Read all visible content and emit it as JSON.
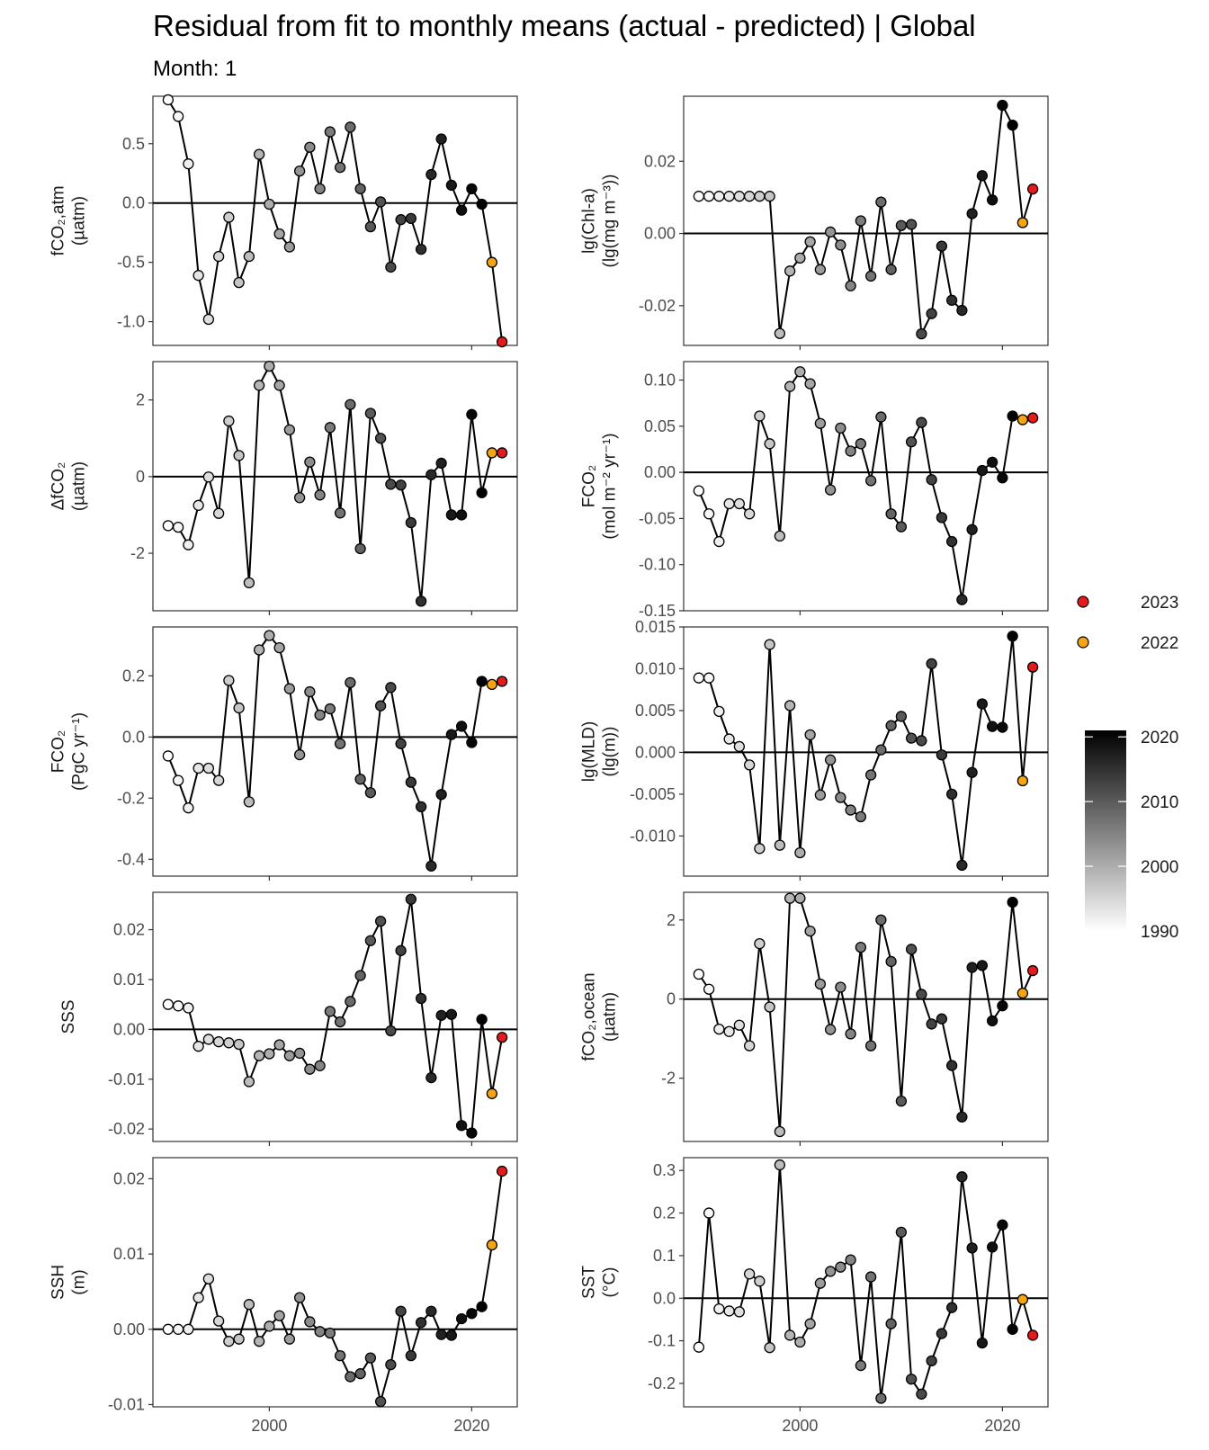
{
  "chart_data": {
    "title": "Residual from fit to monthly means (actual - predicted) | Global",
    "subtitle": "Month: 1",
    "type": "line",
    "x_ticks": [
      "2000",
      "2020"
    ],
    "legend": {
      "highlight": [
        {
          "label": "2023",
          "color": "#e41a1c"
        },
        {
          "label": "2022",
          "color": "#f5a511"
        }
      ],
      "colorbar": {
        "ticks": [
          "2020",
          "2010",
          "2000",
          "1990"
        ],
        "min": 1990,
        "max": 2021
      }
    },
    "panels": [
      {
        "label_lines": [
          "fCO₂,atm",
          "(µatm)"
        ],
        "ylim": [
          -1.2,
          0.9
        ],
        "yticks": [
          -1.0,
          -0.5,
          0.0,
          0.5
        ],
        "tick_labels": [
          "-1.0",
          "-0.5",
          "0.0",
          "0.5"
        ],
        "years": [
          1990,
          1991,
          1992,
          1993,
          1994,
          1995,
          1996,
          1997,
          1998,
          1999,
          2000,
          2001,
          2002,
          2003,
          2004,
          2005,
          2006,
          2007,
          2008,
          2009,
          2010,
          2011,
          2012,
          2013,
          2014,
          2015,
          2016,
          2017,
          2018,
          2019,
          2020,
          2021,
          2022,
          2023
        ],
        "values": [
          0.87,
          0.73,
          0.33,
          -0.61,
          -0.98,
          -0.45,
          -0.12,
          -0.67,
          -0.45,
          0.41,
          -0.01,
          -0.26,
          -0.37,
          0.27,
          0.47,
          0.12,
          0.6,
          0.3,
          0.64,
          0.12,
          -0.2,
          0.01,
          -0.54,
          -0.14,
          -0.13,
          -0.39,
          0.24,
          0.54,
          0.15,
          -0.06,
          0.12,
          -0.01,
          -0.5,
          -1.17
        ]
      },
      {
        "label_lines": [
          "lg(Chl-a)",
          "(lg(mg m⁻³))"
        ],
        "ylim": [
          -0.031,
          0.038
        ],
        "yticks": [
          -0.02,
          0.0,
          0.02
        ],
        "tick_labels": [
          "-0.02",
          "0.00",
          "0.02"
        ],
        "years": [
          1990,
          1991,
          1992,
          1993,
          1994,
          1995,
          1996,
          1997,
          1998,
          1999,
          2000,
          2001,
          2002,
          2003,
          2004,
          2005,
          2006,
          2007,
          2008,
          2009,
          2010,
          2011,
          2012,
          2013,
          2014,
          2015,
          2016,
          2017,
          2018,
          2019,
          2020,
          2021,
          2022,
          2023
        ],
        "values": [
          0.0103,
          0.0103,
          0.0103,
          0.0103,
          0.0103,
          0.0103,
          0.0103,
          0.0103,
          -0.0277,
          -0.0104,
          -0.0068,
          -0.0023,
          -0.01,
          0.0004,
          -0.0032,
          -0.0145,
          0.0035,
          -0.0118,
          0.0087,
          -0.01,
          0.0022,
          0.0025,
          -0.0278,
          -0.0222,
          -0.0035,
          -0.0185,
          -0.0213,
          0.0055,
          0.016,
          0.0093,
          0.0355,
          0.03,
          0.003,
          0.0123
        ]
      },
      {
        "label_lines": [
          "ΔfCO₂",
          "(µatm)"
        ],
        "ylim": [
          -3.5,
          3.0
        ],
        "yticks": [
          -2,
          0,
          2
        ],
        "tick_labels": [
          "-2",
          "0",
          "2"
        ],
        "years": [
          1990,
          1991,
          1992,
          1993,
          1994,
          1995,
          1996,
          1997,
          1998,
          1999,
          2000,
          2001,
          2002,
          2003,
          2004,
          2005,
          2006,
          2007,
          2008,
          2009,
          2010,
          2011,
          2012,
          2013,
          2014,
          2015,
          2016,
          2017,
          2018,
          2019,
          2020,
          2021,
          2022,
          2023
        ],
        "values": [
          -1.28,
          -1.32,
          -1.78,
          -0.75,
          -0.01,
          -0.96,
          1.45,
          0.55,
          -2.77,
          2.38,
          2.88,
          2.38,
          1.22,
          -0.55,
          0.38,
          -0.48,
          1.28,
          -0.95,
          1.88,
          -1.88,
          1.65,
          1.0,
          -0.2,
          -0.22,
          -1.2,
          -3.25,
          0.05,
          0.35,
          -1.0,
          -1.0,
          1.62,
          -0.42,
          0.62,
          0.62
        ]
      },
      {
        "label_lines": [
          "FCO₂",
          "(mol m⁻² yr⁻¹)"
        ],
        "ylim": [
          -0.15,
          0.12
        ],
        "yticks": [
          -0.15,
          -0.1,
          -0.05,
          0.0,
          0.05,
          0.1
        ],
        "tick_labels": [
          "-0.15",
          "-0.10",
          "-0.05",
          "0.00",
          "0.05",
          "0.10"
        ],
        "years": [
          1990,
          1991,
          1992,
          1993,
          1994,
          1995,
          1996,
          1997,
          1998,
          1999,
          2000,
          2001,
          2002,
          2003,
          2004,
          2005,
          2006,
          2007,
          2008,
          2009,
          2010,
          2011,
          2012,
          2013,
          2014,
          2015,
          2016,
          2017,
          2018,
          2019,
          2020,
          2021,
          2022,
          2023
        ],
        "values": [
          -0.02,
          -0.045,
          -0.075,
          -0.034,
          -0.034,
          -0.045,
          0.061,
          0.031,
          -0.069,
          0.093,
          0.109,
          0.096,
          0.053,
          -0.019,
          0.048,
          0.023,
          0.031,
          -0.009,
          0.06,
          -0.045,
          -0.059,
          0.033,
          0.054,
          -0.008,
          -0.049,
          -0.075,
          -0.138,
          -0.062,
          0.002,
          0.011,
          -0.006,
          0.061,
          0.057,
          0.059
        ]
      },
      {
        "label_lines": [
          "FCO₂",
          "(PgC yr⁻¹)"
        ],
        "ylim": [
          -0.455,
          0.36
        ],
        "yticks": [
          -0.4,
          -0.2,
          0.0,
          0.2
        ],
        "tick_labels": [
          "-0.4",
          "-0.2",
          "0.0",
          "0.2"
        ],
        "years": [
          1990,
          1991,
          1992,
          1993,
          1994,
          1995,
          1996,
          1997,
          1998,
          1999,
          2000,
          2001,
          2002,
          2003,
          2004,
          2005,
          2006,
          2007,
          2008,
          2009,
          2010,
          2011,
          2012,
          2013,
          2014,
          2015,
          2016,
          2017,
          2018,
          2019,
          2020,
          2021,
          2022,
          2023
        ],
        "values": [
          -0.062,
          -0.142,
          -0.232,
          -0.102,
          -0.102,
          -0.142,
          0.185,
          0.095,
          -0.212,
          0.285,
          0.332,
          0.292,
          0.158,
          -0.058,
          0.148,
          0.072,
          0.092,
          -0.022,
          0.178,
          -0.138,
          -0.182,
          0.102,
          0.162,
          -0.022,
          -0.148,
          -0.228,
          -0.422,
          -0.188,
          0.008,
          0.035,
          -0.018,
          0.182,
          0.172,
          0.182
        ]
      },
      {
        "label_lines": [
          "lg(MLD)",
          "(lg(m))"
        ],
        "ylim": [
          -0.0148,
          0.015
        ],
        "yticks": [
          -0.01,
          -0.005,
          0.0,
          0.005,
          0.01,
          0.015
        ],
        "tick_labels": [
          "-0.010",
          "-0.005",
          "0.000",
          "0.005",
          "0.010",
          "0.015"
        ],
        "years": [
          1990,
          1991,
          1992,
          1993,
          1994,
          1995,
          1996,
          1997,
          1998,
          1999,
          2000,
          2001,
          2002,
          2003,
          2004,
          2005,
          2006,
          2007,
          2008,
          2009,
          2010,
          2011,
          2012,
          2013,
          2014,
          2015,
          2016,
          2017,
          2018,
          2019,
          2020,
          2021,
          2022,
          2023
        ],
        "values": [
          0.0089,
          0.0089,
          0.0049,
          0.0016,
          0.0007,
          -0.0015,
          -0.0115,
          0.0129,
          -0.0111,
          0.0056,
          -0.012,
          0.0021,
          -0.0051,
          -0.0009,
          -0.0054,
          -0.0069,
          -0.0077,
          -0.0027,
          0.0003,
          0.0032,
          0.0043,
          0.0017,
          0.0014,
          0.0106,
          -0.0003,
          -0.005,
          -0.0135,
          -0.0024,
          0.0058,
          0.0031,
          0.003,
          0.0139,
          -0.0034,
          0.0102
        ]
      },
      {
        "label_lines": [
          "SSS"
        ],
        "ylim": [
          -0.0225,
          0.0275
        ],
        "yticks": [
          -0.02,
          -0.01,
          0.0,
          0.01,
          0.02
        ],
        "tick_labels": [
          "-0.02",
          "-0.01",
          "0.00",
          "0.01",
          "0.02"
        ],
        "years": [
          1990,
          1991,
          1992,
          1993,
          1994,
          1995,
          1996,
          1997,
          1998,
          1999,
          2000,
          2001,
          2002,
          2003,
          2004,
          2005,
          2006,
          2007,
          2008,
          2009,
          2010,
          2011,
          2012,
          2013,
          2014,
          2015,
          2016,
          2017,
          2018,
          2019,
          2020,
          2021,
          2022,
          2023
        ],
        "values": [
          0.005,
          0.0047,
          0.0043,
          -0.0034,
          -0.002,
          -0.0025,
          -0.0027,
          -0.003,
          -0.0105,
          -0.0053,
          -0.0049,
          -0.0031,
          -0.0053,
          -0.0048,
          -0.008,
          -0.0073,
          0.0036,
          0.0015,
          0.0056,
          0.0108,
          0.0178,
          0.0217,
          -0.0003,
          0.0158,
          0.0261,
          0.0062,
          -0.0097,
          0.0028,
          0.003,
          -0.0193,
          -0.0208,
          0.002,
          -0.0129,
          -0.0016
        ]
      },
      {
        "label_lines": [
          "fCO₂,ocean",
          "(µatm)"
        ],
        "ylim": [
          -3.6,
          2.7
        ],
        "yticks": [
          -2,
          0,
          2
        ],
        "tick_labels": [
          "-2",
          "0",
          "2"
        ],
        "years": [
          1990,
          1991,
          1992,
          1993,
          1994,
          1995,
          1996,
          1997,
          1998,
          1999,
          2000,
          2001,
          2002,
          2003,
          2004,
          2005,
          2006,
          2007,
          2008,
          2009,
          2010,
          2011,
          2012,
          2013,
          2014,
          2015,
          2016,
          2017,
          2018,
          2019,
          2020,
          2021,
          2022,
          2023
        ],
        "values": [
          0.63,
          0.25,
          -0.76,
          -0.82,
          -0.66,
          -1.18,
          1.4,
          -0.2,
          -3.35,
          2.55,
          2.55,
          1.72,
          0.38,
          -0.77,
          0.3,
          -0.88,
          1.31,
          -1.18,
          2.0,
          0.95,
          -2.58,
          1.26,
          0.12,
          -0.63,
          -0.5,
          -1.68,
          -2.98,
          0.8,
          0.85,
          -0.55,
          -0.17,
          2.45,
          0.15,
          0.72
        ]
      },
      {
        "label_lines": [
          "SSH",
          "(m)"
        ],
        "ylim": [
          -0.0103,
          0.0228
        ],
        "yticks": [
          -0.01,
          0.0,
          0.01,
          0.02
        ],
        "tick_labels": [
          "-0.01",
          "0.00",
          "0.01",
          "0.02"
        ],
        "years": [
          1990,
          1991,
          1992,
          1993,
          1994,
          1995,
          1996,
          1997,
          1998,
          1999,
          2000,
          2001,
          2002,
          2003,
          2004,
          2005,
          2006,
          2007,
          2008,
          2009,
          2010,
          2011,
          2012,
          2013,
          2014,
          2015,
          2016,
          2017,
          2018,
          2019,
          2020,
          2021,
          2022,
          2023
        ],
        "values": [
          0.0,
          0.0,
          0.0,
          0.0042,
          0.0067,
          0.0011,
          -0.0016,
          -0.0013,
          0.0033,
          -0.0016,
          0.0004,
          0.0018,
          -0.0013,
          0.0042,
          0.001,
          -0.0003,
          -0.0005,
          -0.0035,
          -0.0063,
          -0.0059,
          -0.0038,
          -0.0096,
          -0.0047,
          0.0024,
          -0.0035,
          0.0009,
          0.0024,
          -0.0007,
          -0.0008,
          0.0014,
          0.0021,
          0.003,
          0.0112,
          0.021
        ]
      },
      {
        "label_lines": [
          "SST",
          "(°C)"
        ],
        "ylim": [
          -0.255,
          0.33
        ],
        "yticks": [
          -0.2,
          -0.1,
          0.0,
          0.1,
          0.2,
          0.3
        ],
        "tick_labels": [
          "-0.2",
          "-0.1",
          "0.0",
          "0.1",
          "0.2",
          "0.3"
        ],
        "years": [
          1990,
          1991,
          1992,
          1993,
          1994,
          1995,
          1996,
          1997,
          1998,
          1999,
          2000,
          2001,
          2002,
          2003,
          2004,
          2005,
          2006,
          2007,
          2008,
          2009,
          2010,
          2011,
          2012,
          2013,
          2014,
          2015,
          2016,
          2017,
          2018,
          2019,
          2020,
          2021,
          2022,
          2023
        ],
        "values": [
          -0.115,
          0.2,
          -0.025,
          -0.03,
          -0.032,
          0.057,
          0.04,
          -0.116,
          0.313,
          -0.087,
          -0.103,
          -0.06,
          0.035,
          0.063,
          0.073,
          0.09,
          -0.158,
          0.05,
          -0.235,
          -0.06,
          0.155,
          -0.19,
          -0.225,
          -0.147,
          -0.083,
          -0.022,
          0.285,
          0.118,
          -0.105,
          0.12,
          0.172,
          -0.073,
          -0.003,
          -0.087
        ]
      }
    ]
  }
}
